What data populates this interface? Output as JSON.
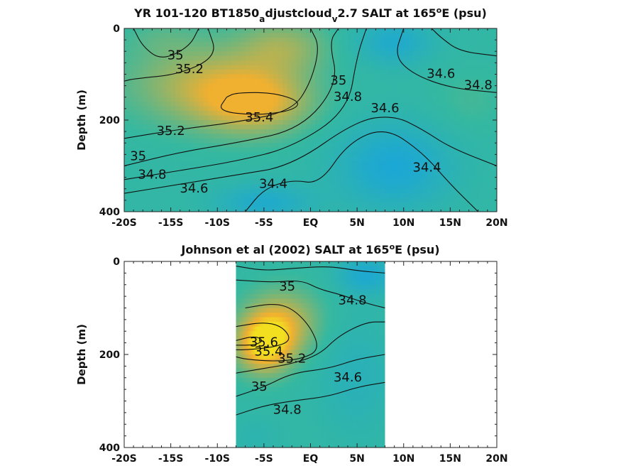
{
  "chart_data": [
    {
      "type": "heatmap",
      "title_parts": [
        "YR 101-120 BT1850",
        "a",
        "djustcloud",
        "v",
        "2.7 SALT at 165",
        "o",
        "E (psu)"
      ],
      "ylabel": "Depth (m)",
      "xlim": [
        -20,
        20
      ],
      "ylim": [
        400,
        0
      ],
      "x_ticks": [
        -20,
        -15,
        -10,
        -5,
        0,
        5,
        10,
        15,
        20
      ],
      "x_tick_labels": [
        "-20S",
        "-15S",
        "-10S",
        "-5S",
        "EQ",
        "5N",
        "10N",
        "15N",
        "20N"
      ],
      "y_ticks": [
        0,
        200,
        400
      ],
      "y_tick_labels": [
        "0",
        "200",
        "400"
      ],
      "data_extent_x": [
        -20,
        20
      ],
      "colors": {
        "low": "#1aa6d9",
        "mid": "#35b8a0",
        "high": "#f0b030"
      },
      "field_blobs": [
        {
          "x": -6,
          "y": 160,
          "v": 35.45,
          "sx": 6,
          "sy": 70
        },
        {
          "x": -12,
          "y": 120,
          "v": 35.25,
          "sx": 8,
          "sy": 90
        },
        {
          "x": -3,
          "y": 40,
          "v": 35.2,
          "sx": 5,
          "sy": 60
        },
        {
          "x": -16,
          "y": 20,
          "v": 34.95,
          "sx": 4,
          "sy": 40
        },
        {
          "x": 9,
          "y": 300,
          "v": 34.35,
          "sx": 6,
          "sy": 90
        },
        {
          "x": 9,
          "y": 30,
          "v": 34.45,
          "sx": 4,
          "sy": 50
        },
        {
          "x": 17,
          "y": 160,
          "v": 34.95,
          "sx": 4,
          "sy": 70
        },
        {
          "x": -5,
          "y": 380,
          "v": 34.45,
          "sx": 5,
          "sy": 40
        }
      ],
      "contour_labels": [
        {
          "text": "35",
          "x": -14.5,
          "y": 60
        },
        {
          "text": "35.2",
          "x": -13,
          "y": 90
        },
        {
          "text": "35.4",
          "x": -5.5,
          "y": 195
        },
        {
          "text": "35.2",
          "x": -15,
          "y": 225
        },
        {
          "text": "35",
          "x": -18.5,
          "y": 280
        },
        {
          "text": "34.8",
          "x": -17,
          "y": 320
        },
        {
          "text": "34.6",
          "x": -12.5,
          "y": 350
        },
        {
          "text": "34.4",
          "x": -4,
          "y": 340
        },
        {
          "text": "35",
          "x": 3,
          "y": 115
        },
        {
          "text": "34.8",
          "x": 4,
          "y": 150
        },
        {
          "text": "34.6",
          "x": 8,
          "y": 175
        },
        {
          "text": "34.4",
          "x": 12.5,
          "y": 305
        },
        {
          "text": "34.6",
          "x": 14,
          "y": 100
        },
        {
          "text": "34.8",
          "x": 18,
          "y": 125
        }
      ],
      "contour_lines": [
        [
          [
            -12,
            0
          ],
          [
            -13,
            40
          ],
          [
            -16,
            70
          ],
          [
            -18,
            40
          ],
          [
            -19,
            0
          ]
        ],
        [
          [
            -11,
            0
          ],
          [
            -10,
            60
          ],
          [
            -14,
            100
          ],
          [
            -19,
            110
          ],
          [
            -20,
            115
          ]
        ],
        [
          [
            -9,
            150
          ],
          [
            -8,
            140
          ],
          [
            -4,
            140
          ],
          [
            -1,
            160
          ],
          [
            -2,
            180
          ],
          [
            -6,
            190
          ],
          [
            -10,
            180
          ],
          [
            -9,
            150
          ]
        ],
        [
          [
            -20,
            240
          ],
          [
            -14,
            220
          ],
          [
            -8,
            205
          ],
          [
            -2,
            180
          ],
          [
            0,
            120
          ],
          [
            1,
            40
          ],
          [
            0,
            0
          ]
        ],
        [
          [
            -20,
            300
          ],
          [
            -14,
            270
          ],
          [
            -8,
            250
          ],
          [
            -1,
            220
          ],
          [
            3,
            120
          ],
          [
            2,
            30
          ],
          [
            3,
            0
          ]
        ],
        [
          [
            -20,
            330
          ],
          [
            -14,
            310
          ],
          [
            -8,
            290
          ],
          [
            -2,
            260
          ],
          [
            4,
            180
          ],
          [
            5,
            60
          ],
          [
            6,
            0
          ]
        ],
        [
          [
            -20,
            360
          ],
          [
            -14,
            340
          ],
          [
            -8,
            320
          ],
          [
            -2,
            300
          ],
          [
            5,
            200
          ],
          [
            9,
            190
          ],
          [
            12,
            220
          ],
          [
            15,
            260
          ],
          [
            20,
            300
          ]
        ],
        [
          [
            -7,
            400
          ],
          [
            -5,
            350
          ],
          [
            -2,
            330
          ],
          [
            1,
            340
          ],
          [
            4,
            250
          ],
          [
            8,
            215
          ],
          [
            12,
            270
          ],
          [
            15,
            340
          ],
          [
            18,
            400
          ]
        ],
        [
          [
            20,
            140
          ],
          [
            15,
            130
          ],
          [
            11,
            100
          ],
          [
            9,
            60
          ],
          [
            10,
            0
          ]
        ],
        [
          [
            20,
            60
          ],
          [
            16,
            50
          ],
          [
            14,
            20
          ],
          [
            13,
            0
          ]
        ]
      ]
    },
    {
      "type": "heatmap",
      "title_parts": [
        "Johnson et al (2002) SALT at 165",
        "o",
        "E (psu)"
      ],
      "ylabel": "Depth (m)",
      "xlim": [
        -20,
        20
      ],
      "ylim": [
        400,
        0
      ],
      "x_ticks": [
        -20,
        -15,
        -10,
        -5,
        0,
        5,
        10,
        15,
        20
      ],
      "x_tick_labels": [
        "-20S",
        "-15S",
        "-10S",
        "-5S",
        "EQ",
        "5N",
        "10N",
        "15N",
        "20N"
      ],
      "y_ticks": [
        0,
        200,
        400
      ],
      "y_tick_labels": [
        "0",
        "200",
        "400"
      ],
      "data_extent_x": [
        -8,
        8
      ],
      "colors": {
        "low": "#1aa6d9",
        "mid": "#35b8a0",
        "high": "#f0b030",
        "peak": "#f2e020"
      },
      "field_blobs": [
        {
          "x": -5,
          "y": 180,
          "v": 35.65,
          "sx": 3,
          "sy": 60
        },
        {
          "x": -3,
          "y": 130,
          "v": 35.35,
          "sx": 4,
          "sy": 70
        },
        {
          "x": 6,
          "y": 30,
          "v": 34.4,
          "sx": 3,
          "sy": 40
        },
        {
          "x": 5,
          "y": 250,
          "v": 34.65,
          "sx": 4,
          "sy": 120
        },
        {
          "x": -6,
          "y": 380,
          "v": 34.75,
          "sx": 3,
          "sy": 50
        }
      ],
      "contour_labels": [
        {
          "text": "35",
          "x": -2.5,
          "y": 55
        },
        {
          "text": "34.8",
          "x": 4.5,
          "y": 85
        },
        {
          "text": "35.6",
          "x": -5,
          "y": 175
        },
        {
          "text": "35.4",
          "x": -4.5,
          "y": 195
        },
        {
          "text": "35.2",
          "x": -2,
          "y": 210
        },
        {
          "text": "34.6",
          "x": 4,
          "y": 250
        },
        {
          "text": "35",
          "x": -5.5,
          "y": 270
        },
        {
          "text": "34.8",
          "x": -2.5,
          "y": 320
        }
      ],
      "contour_lines": [
        [
          [
            -8,
            10
          ],
          [
            -5,
            20
          ],
          [
            -2,
            15
          ],
          [
            2,
            10
          ],
          [
            5,
            20
          ],
          [
            8,
            25
          ]
        ],
        [
          [
            -8,
            40
          ],
          [
            -4,
            45
          ],
          [
            -1,
            40
          ],
          [
            1,
            60
          ],
          [
            3,
            70
          ],
          [
            6,
            90
          ],
          [
            8,
            100
          ]
        ],
        [
          [
            -7,
            100
          ],
          [
            -4,
            90
          ],
          [
            -2,
            100
          ],
          [
            0,
            140
          ],
          [
            1,
            190
          ],
          [
            -1,
            210
          ],
          [
            -4,
            215
          ],
          [
            -7,
            210
          ],
          [
            -8,
            205
          ]
        ],
        [
          [
            -8,
            140
          ],
          [
            -5,
            130
          ],
          [
            -3,
            140
          ],
          [
            -2,
            170
          ],
          [
            -4,
            185
          ],
          [
            -7,
            190
          ],
          [
            -8,
            190
          ]
        ],
        [
          [
            -8,
            170
          ],
          [
            -6,
            160
          ],
          [
            -5,
            170
          ],
          [
            -6,
            180
          ],
          [
            -8,
            180
          ]
        ],
        [
          [
            -8,
            240
          ],
          [
            -5,
            230
          ],
          [
            -2,
            220
          ],
          [
            1,
            200
          ],
          [
            3,
            160
          ],
          [
            6,
            130
          ],
          [
            8,
            130
          ]
        ],
        [
          [
            -8,
            290
          ],
          [
            -5,
            270
          ],
          [
            -2,
            240
          ],
          [
            2,
            230
          ],
          [
            5,
            210
          ],
          [
            8,
            200
          ]
        ],
        [
          [
            -8,
            330
          ],
          [
            -5,
            310
          ],
          [
            -2,
            300
          ],
          [
            2,
            290
          ],
          [
            5,
            270
          ],
          [
            8,
            260
          ]
        ]
      ]
    }
  ]
}
